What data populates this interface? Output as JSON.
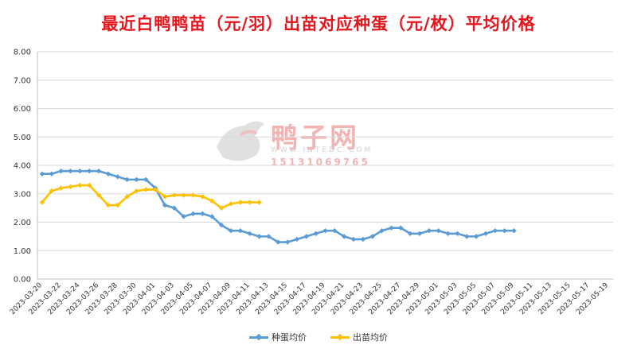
{
  "title": "最近白鸭鸭苗（元/羽）出苗对应种蛋（元/枚）平均价格",
  "watermark": {
    "brand": "鸭子网",
    "url": "WWW.INTEDC.COM",
    "phone": "15131069765"
  },
  "colors": {
    "egg": "#5b9bd5",
    "chick": "#ffc000",
    "title": "#e8141c",
    "grid": "#d9d9d9"
  },
  "chart_data": {
    "type": "line",
    "ylim": [
      0,
      8
    ],
    "yticks": [
      "0.00",
      "1.00",
      "2.00",
      "3.00",
      "4.00",
      "5.00",
      "6.00",
      "7.00",
      "8.00"
    ],
    "xticks": [
      "2023-03-20",
      "2023-03-22",
      "2023-03-24",
      "2023-03-26",
      "2023-03-28",
      "2023-03-30",
      "2023-04-01",
      "2023-04-03",
      "2023-04-05",
      "2023-04-07",
      "2023-04-09",
      "2023-04-11",
      "2023-04-13",
      "2023-04-15",
      "2023-04-17",
      "2023-04-19",
      "2023-04-21",
      "2023-04-23",
      "2023-04-25",
      "2023-04-27",
      "2023-04-29",
      "2023-05-01",
      "2023-05-03",
      "2023-05-05",
      "2023-05-07",
      "2023-05-09",
      "2023-05-11",
      "2023-05-13",
      "2023-05-15",
      "2023-05-17",
      "2023-05-19"
    ],
    "grid": true,
    "legend_position": "bottom",
    "series": [
      {
        "name": "种蛋均价",
        "color": "#5b9bd5",
        "values": [
          3.7,
          3.7,
          3.8,
          3.8,
          3.8,
          3.8,
          3.8,
          3.7,
          3.6,
          3.5,
          3.5,
          3.5,
          3.2,
          2.6,
          2.5,
          2.2,
          2.3,
          2.3,
          2.2,
          1.9,
          1.7,
          1.7,
          1.6,
          1.5,
          1.5,
          1.3,
          1.3,
          1.4,
          1.5,
          1.6,
          1.7,
          1.7,
          1.5,
          1.4,
          1.4,
          1.5,
          1.7,
          1.8,
          1.8,
          1.6,
          1.6,
          1.7,
          1.7,
          1.6,
          1.6,
          1.5,
          1.5,
          1.6,
          1.7,
          1.7,
          1.7
        ]
      },
      {
        "name": "出苗均价",
        "color": "#ffc000",
        "values": [
          2.7,
          3.1,
          3.2,
          3.25,
          3.3,
          3.3,
          2.95,
          2.6,
          2.6,
          2.9,
          3.1,
          3.15,
          3.15,
          2.9,
          2.95,
          2.95,
          2.95,
          2.9,
          2.75,
          2.5,
          2.65,
          2.7,
          2.7,
          2.7
        ]
      }
    ]
  }
}
